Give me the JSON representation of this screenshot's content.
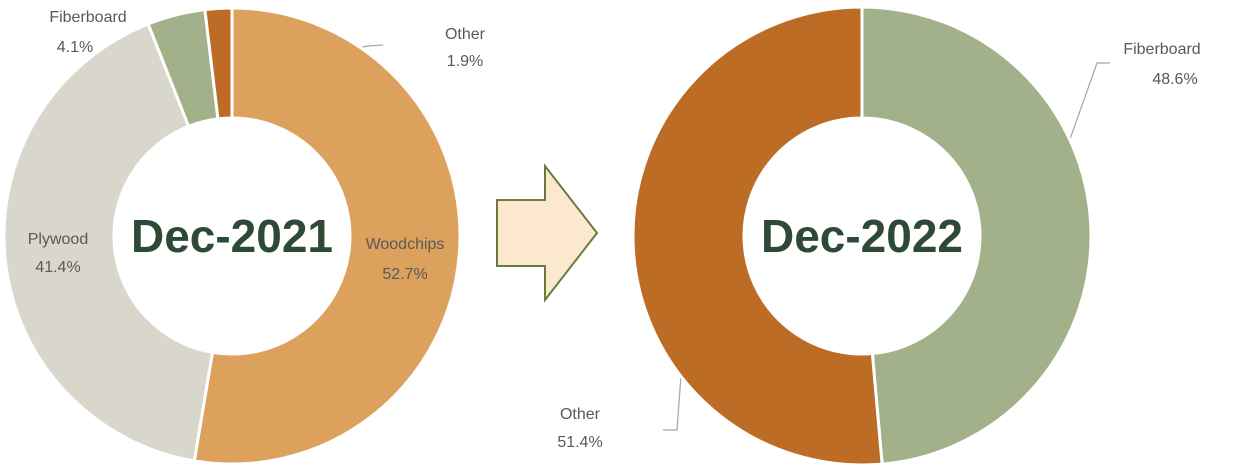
{
  "chart_data": [
    {
      "type": "donut",
      "title": "Dec-2021",
      "categories": [
        "Woodchips",
        "Plywood",
        "Fiberboard",
        "Other"
      ],
      "values": [
        52.7,
        41.4,
        4.1,
        1.9
      ],
      "value_labels": [
        "52.7%",
        "41.4%",
        "4.1%",
        "1.9%"
      ],
      "colors": [
        "#dda15e",
        "#d9d6cc",
        "#a3b18a",
        "#bc6c25"
      ]
    },
    {
      "type": "donut",
      "title": "Dec-2022",
      "categories": [
        "Fiberboard",
        "Other"
      ],
      "values": [
        48.6,
        51.4
      ],
      "value_labels": [
        "48.6%",
        "51.4%"
      ],
      "colors": [
        "#a3b18a",
        "#bc6c25"
      ]
    }
  ]
}
